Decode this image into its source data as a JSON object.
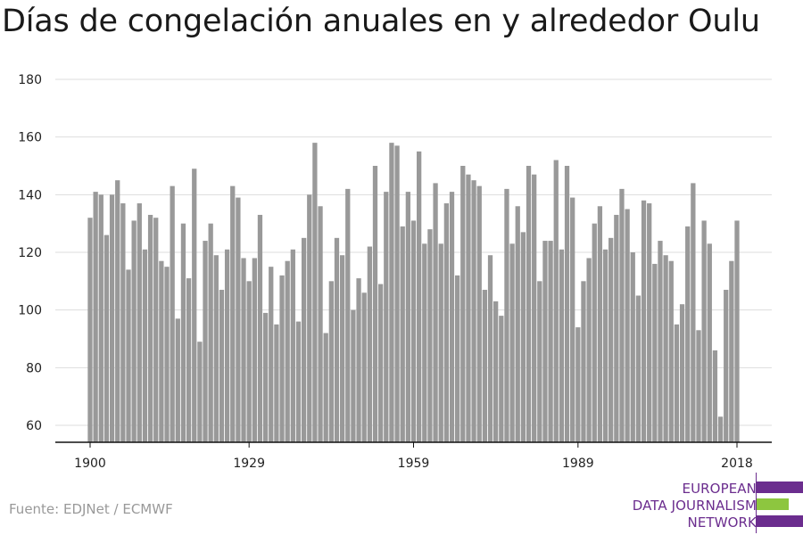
{
  "title": "Días de congelación anuales en y alrededor Oulu",
  "source": "Fuente: EDJNet / ECMWF",
  "logo": {
    "lines": [
      "EUROPEAN",
      "DATA JOURNALISM",
      "NETWORK"
    ],
    "colors": {
      "purple": "#6b2d8e",
      "green": "#8dc63f"
    }
  },
  "chart_data": {
    "type": "bar",
    "title": "Días de congelación anuales en y alrededor Oulu",
    "xlabel": "",
    "ylabel": "",
    "ylim": [
      54,
      180
    ],
    "y_ticks": [
      60,
      80,
      100,
      120,
      140,
      160,
      180
    ],
    "x_ticks": [
      1900,
      1929,
      1959,
      1989,
      2018
    ],
    "bar_color": "#999999",
    "grid": true,
    "x": [
      1900,
      1901,
      1902,
      1903,
      1904,
      1905,
      1906,
      1907,
      1908,
      1909,
      1910,
      1911,
      1912,
      1913,
      1914,
      1915,
      1916,
      1917,
      1918,
      1919,
      1920,
      1921,
      1922,
      1923,
      1924,
      1925,
      1926,
      1927,
      1928,
      1929,
      1930,
      1931,
      1932,
      1933,
      1934,
      1935,
      1936,
      1937,
      1938,
      1939,
      1940,
      1941,
      1942,
      1943,
      1944,
      1945,
      1946,
      1947,
      1948,
      1949,
      1950,
      1951,
      1952,
      1953,
      1954,
      1955,
      1956,
      1957,
      1958,
      1959,
      1960,
      1961,
      1962,
      1963,
      1964,
      1965,
      1966,
      1967,
      1968,
      1969,
      1970,
      1971,
      1972,
      1973,
      1974,
      1975,
      1976,
      1977,
      1978,
      1979,
      1980,
      1981,
      1982,
      1983,
      1984,
      1985,
      1986,
      1987,
      1988,
      1989,
      1990,
      1991,
      1992,
      1993,
      1994,
      1995,
      1996,
      1997,
      1998,
      1999,
      2000,
      2001,
      2002,
      2003,
      2004,
      2005,
      2006,
      2007,
      2008,
      2009,
      2010,
      2011,
      2012,
      2013,
      2014,
      2015,
      2016,
      2017,
      2018
    ],
    "values": [
      132,
      141,
      140,
      126,
      140,
      145,
      137,
      114,
      131,
      137,
      121,
      133,
      132,
      117,
      115,
      143,
      97,
      130,
      111,
      149,
      89,
      124,
      130,
      119,
      107,
      121,
      143,
      139,
      118,
      110,
      118,
      133,
      99,
      115,
      95,
      112,
      117,
      121,
      96,
      125,
      140,
      158,
      136,
      92,
      110,
      125,
      119,
      142,
      100,
      111,
      106,
      122,
      150,
      109,
      141,
      158,
      157,
      129,
      141,
      131,
      155,
      123,
      128,
      144,
      123,
      137,
      141,
      112,
      150,
      147,
      145,
      143,
      107,
      119,
      103,
      98,
      142,
      123,
      136,
      127,
      150,
      147,
      110,
      124,
      124,
      152,
      121,
      150,
      139,
      94,
      110,
      118,
      130,
      136,
      121,
      125,
      133,
      142,
      135,
      120,
      105,
      138,
      137,
      116,
      124,
      119,
      117,
      95,
      102,
      129,
      144,
      93,
      131,
      123,
      86,
      63,
      107,
      117,
      131
    ]
  }
}
